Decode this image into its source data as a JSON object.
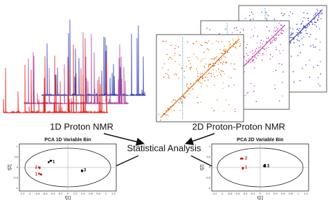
{
  "spectra_1d": {
    "label": "1D Proton NMR"
  },
  "spectra_2d": {
    "label": "2D Proton-Proton NMR"
  },
  "center": {
    "label": "Statistical Analysis"
  },
  "pca_plots": [
    {
      "title": "PCA 1D Variable Bin",
      "x_label": "t[1]",
      "y_label": "t[2]",
      "x_ticks": [
        "-1.2",
        "-1",
        "-0.8",
        "-0.6",
        "-0.4",
        "-0.2",
        "0",
        "0.2",
        "0.4",
        "0.6",
        "0.8",
        "1",
        "1.2"
      ],
      "y_ticks": [
        "1",
        "0.5",
        "0",
        "-0.5",
        "-1"
      ],
      "points": [
        {
          "label": "1",
          "color": "#000000"
        },
        {
          "label": "3",
          "color": "#000000"
        },
        {
          "label": "2",
          "color": "#d01010"
        },
        {
          "label": "1",
          "color": "#d01010"
        }
      ]
    },
    {
      "title": "PCA 2D Variable Bin",
      "x_label": "t[1]",
      "y_label": "t[2]",
      "x_ticks": [
        "-1.2",
        "-1",
        "-0.8",
        "-0.6",
        "-0.4",
        "-0.2",
        "0",
        "0.2",
        "0.4",
        "0.6",
        "0.8",
        "1",
        "1.2"
      ],
      "y_ticks": [
        "1",
        "0.5",
        "0",
        "-0.5",
        "-1"
      ],
      "points": [
        {
          "label": "2",
          "color": "#d01010"
        },
        {
          "label": "1",
          "color": "#d01010"
        },
        {
          "label": "3",
          "color": "#000000"
        }
      ]
    }
  ]
}
